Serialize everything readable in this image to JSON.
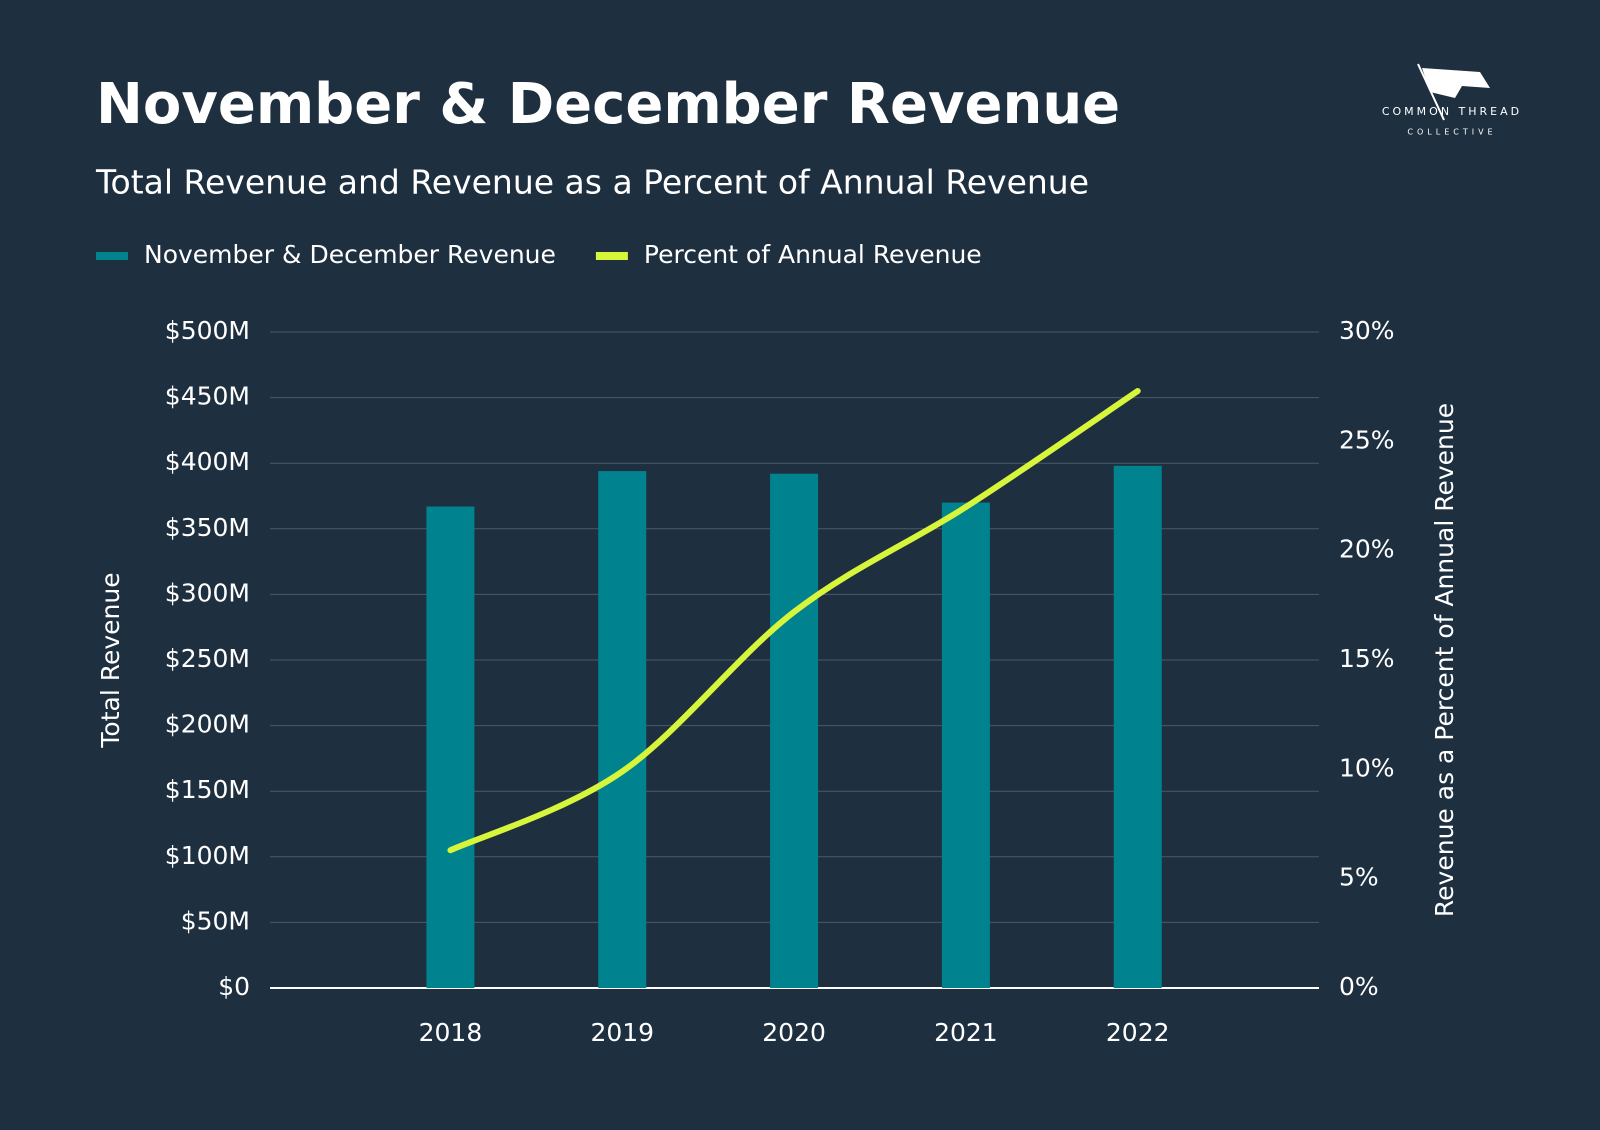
{
  "logo": {
    "line1": "COMMON THREAD",
    "line2": "COLLECTIVE"
  },
  "chart_data": {
    "type": "bar",
    "title": "November & December Revenue",
    "subtitle": "Total Revenue and Revenue as a Percent of Annual Revenue",
    "y_label": "Total Revenue",
    "y2_label": "Revenue as a Percent of Annual Revenue",
    "legend": "top-left",
    "grid": true,
    "categories": [
      "2018",
      "2019",
      "2020",
      "2021",
      "2022"
    ],
    "series": [
      {
        "name": "November & December Revenue",
        "type": "bar",
        "color": "#00838f",
        "values": [
          367000000,
          394000000,
          392000000,
          370000000,
          398000000
        ]
      },
      {
        "name": "Percent of Annual Revenue",
        "type": "line",
        "axis": "y2",
        "color": "#d7f53a",
        "values": [
          6.3,
          9.9,
          17.2,
          22.0,
          27.3
        ]
      }
    ],
    "ylim": [
      0,
      500000000
    ],
    "yticks": [
      {
        "value": 0,
        "label": "$0"
      },
      {
        "value": 50000000,
        "label": "$50M"
      },
      {
        "value": 100000000,
        "label": "$100M"
      },
      {
        "value": 150000000,
        "label": "$150M"
      },
      {
        "value": 200000000,
        "label": "$200M"
      },
      {
        "value": 250000000,
        "label": "$250M"
      },
      {
        "value": 300000000,
        "label": "$300M"
      },
      {
        "value": 350000000,
        "label": "$350M"
      },
      {
        "value": 400000000,
        "label": "$400M"
      },
      {
        "value": 450000000,
        "label": "$450M"
      },
      {
        "value": 500000000,
        "label": "$500M"
      }
    ],
    "y2lim": [
      0,
      30
    ],
    "y2ticks": [
      {
        "value": 0,
        "label": "0%"
      },
      {
        "value": 5,
        "label": "5%"
      },
      {
        "value": 10,
        "label": "10%"
      },
      {
        "value": 15,
        "label": "15%"
      },
      {
        "value": 20,
        "label": "20%"
      },
      {
        "value": 25,
        "label": "25%"
      },
      {
        "value": 30,
        "label": "30%"
      }
    ]
  }
}
